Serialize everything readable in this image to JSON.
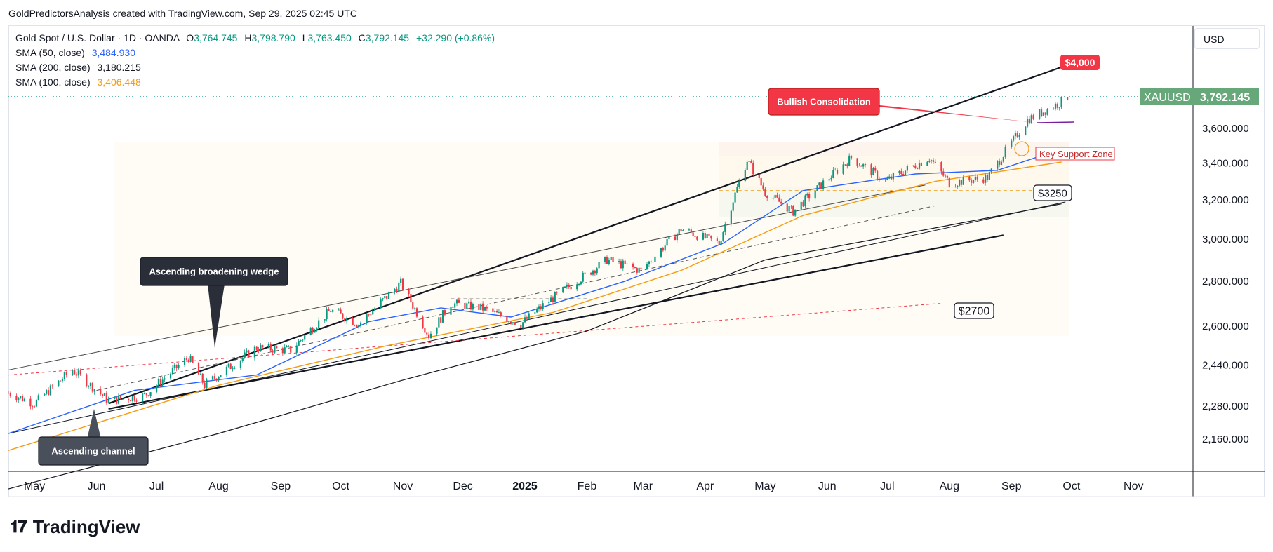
{
  "header": {
    "credit": "GoldPredictorsAnalysis created with TradingView.com, Sep 29, 2025 02:45 UTC"
  },
  "legend": {
    "symbol": "Gold Spot / U.S. Dollar · 1D · OANDA",
    "o_label": "O",
    "o_value": "3,764.745",
    "h_label": "H",
    "h_value": "3,798.790",
    "l_label": "L",
    "l_value": "3,763.450",
    "c_label": "C",
    "c_value": "3,792.145",
    "change": "+32.290 (+0.86%)",
    "sma50_label": "SMA (50, close)",
    "sma50_value": "3,484.930",
    "sma200_label": "SMA (200, close)",
    "sma200_value": "3,180.215",
    "sma100_label": "SMA (100, close)",
    "sma100_value": "3,406.448"
  },
  "currency_button": "USD",
  "footer": {
    "brand": "TradingView",
    "logo_icon": "tradingview-logo-icon"
  },
  "colors": {
    "up": "#089981",
    "down": "#f23645",
    "sma50": "#2962ff",
    "sma100": "#f39c12",
    "sma200": "#131722",
    "callout_red": "#f23645",
    "callout_dark": "#2a2e39",
    "price_tag": "#66a87a"
  },
  "chart_data": {
    "type": "candlestick",
    "symbol": "XAUUSD",
    "last_price": "3,792.145",
    "x_ticks": [
      "May",
      "Jun",
      "Jul",
      "Aug",
      "Sep",
      "Oct",
      "Nov",
      "Dec",
      "2025",
      "Feb",
      "Mar",
      "Apr",
      "May",
      "Jun",
      "Jul",
      "Aug",
      "Sep",
      "Oct",
      "Nov"
    ],
    "y_ticks": [
      "3,600.000",
      "3,400.000",
      "3,200.000",
      "3,000.000",
      "2,800.000",
      "2,600.000",
      "2,440.000",
      "2,280.000",
      "2,160.000"
    ],
    "y_tick_values": [
      3600,
      3400,
      3200,
      3000,
      2800,
      2600,
      2440,
      2280,
      2160
    ],
    "y_scale": "log",
    "ylim": [
      2080,
      4000
    ],
    "x_range": [
      "2024-04-18",
      "2025-11-30"
    ],
    "price_path": [
      [
        "2024-04-18",
        2330
      ],
      [
        "2024-05-01",
        2290
      ],
      [
        "2024-05-20",
        2420
      ],
      [
        "2024-06-07",
        2300
      ],
      [
        "2024-06-25",
        2320
      ],
      [
        "2024-07-17",
        2470
      ],
      [
        "2024-07-25",
        2360
      ],
      [
        "2024-08-20",
        2510
      ],
      [
        "2024-09-06",
        2500
      ],
      [
        "2024-09-26",
        2670
      ],
      [
        "2024-10-10",
        2610
      ],
      [
        "2024-10-31",
        2790
      ],
      [
        "2024-11-14",
        2560
      ],
      [
        "2024-11-25",
        2700
      ],
      [
        "2024-12-10",
        2680
      ],
      [
        "2024-12-30",
        2610
      ],
      [
        "2025-01-10",
        2690
      ],
      [
        "2025-02-11",
        2900
      ],
      [
        "2025-02-28",
        2850
      ],
      [
        "2025-03-20",
        3050
      ],
      [
        "2025-04-08",
        2980
      ],
      [
        "2025-04-22",
        3420
      ],
      [
        "2025-05-01",
        3240
      ],
      [
        "2025-05-15",
        3140
      ],
      [
        "2025-06-13",
        3430
      ],
      [
        "2025-06-30",
        3300
      ],
      [
        "2025-07-22",
        3430
      ],
      [
        "2025-08-01",
        3290
      ],
      [
        "2025-08-20",
        3320
      ],
      [
        "2025-09-02",
        3530
      ],
      [
        "2025-09-09",
        3650
      ],
      [
        "2025-09-26",
        3760
      ],
      [
        "2025-09-29",
        3792
      ]
    ],
    "sma50": [
      [
        "2024-04-18",
        2180
      ],
      [
        "2024-06-20",
        2340
      ],
      [
        "2024-08-20",
        2400
      ],
      [
        "2024-10-15",
        2620
      ],
      [
        "2024-11-20",
        2680
      ],
      [
        "2024-12-25",
        2640
      ],
      [
        "2025-02-20",
        2800
      ],
      [
        "2025-04-10",
        2980
      ],
      [
        "2025-05-20",
        3250
      ],
      [
        "2025-07-15",
        3340
      ],
      [
        "2025-08-25",
        3360
      ],
      [
        "2025-09-26",
        3480
      ]
    ],
    "sma100": [
      [
        "2024-04-18",
        2120
      ],
      [
        "2024-08-01",
        2360
      ],
      [
        "2024-10-25",
        2520
      ],
      [
        "2025-01-15",
        2660
      ],
      [
        "2025-03-20",
        2850
      ],
      [
        "2025-05-20",
        3120
      ],
      [
        "2025-07-25",
        3300
      ],
      [
        "2025-09-26",
        3406
      ]
    ],
    "sma200": [
      [
        "2024-04-18",
        1990
      ],
      [
        "2024-08-01",
        2180
      ],
      [
        "2024-11-01",
        2380
      ],
      [
        "2025-02-01",
        2580
      ],
      [
        "2025-05-01",
        2900
      ],
      [
        "2025-08-01",
        3070
      ],
      [
        "2025-09-26",
        3180
      ]
    ],
    "trendlines": [
      {
        "name": "broadening-wedge-upper",
        "from": [
          "2024-06-07",
          2290
        ],
        "to": [
          "2025-09-30",
          4000
        ]
      },
      {
        "name": "broadening-wedge-lower",
        "from": [
          "2024-06-07",
          2270
        ],
        "to": [
          "2025-08-28",
          3020
        ]
      },
      {
        "name": "ascending-channel-upper",
        "from": [
          "2024-04-18",
          2420
        ],
        "to": [
          "2025-07-20",
          3280
        ]
      },
      {
        "name": "ascending-channel-lower",
        "from": [
          "2024-04-18",
          2180
        ],
        "to": [
          "2025-09-28",
          3190
        ]
      },
      {
        "name": "mid-dashed",
        "from": [
          "2024-06-01",
          2340
        ],
        "to": [
          "2025-07-25",
          3170
        ]
      },
      {
        "name": "red-dashed-2700",
        "from": [
          "2024-04-18",
          2400
        ],
        "to": [
          "2025-07-28",
          2700
        ]
      }
    ],
    "zones": [
      {
        "name": "key-support-zone",
        "from": "2025-04-08",
        "to": "2025-09-30",
        "top": 3520,
        "bottom": 3110
      },
      {
        "name": "wedge-band",
        "from": "2024-06-10",
        "to": "2025-09-30",
        "top": 3520,
        "bottom": 2560
      }
    ],
    "annotations": [
      {
        "text": "Bullish Consolidation",
        "style": "red"
      },
      {
        "text": "Key Support Zone",
        "style": "outline-red"
      },
      {
        "text": "$4,000",
        "style": "red-tag"
      },
      {
        "text": "$3250",
        "style": "outline-dark"
      },
      {
        "text": "$2700",
        "style": "outline-dark"
      },
      {
        "text": "Ascending broadening wedge",
        "style": "dark"
      },
      {
        "text": "Ascending channel",
        "style": "dark"
      }
    ]
  }
}
